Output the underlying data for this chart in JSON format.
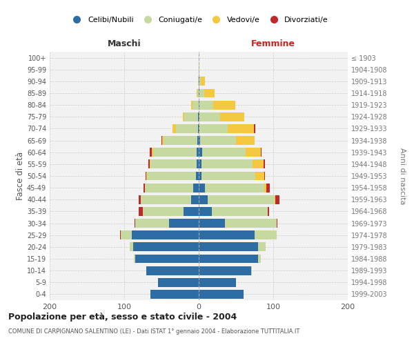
{
  "age_groups": [
    "0-4",
    "5-9",
    "10-14",
    "15-19",
    "20-24",
    "25-29",
    "30-34",
    "35-39",
    "40-44",
    "45-49",
    "50-54",
    "55-59",
    "60-64",
    "65-69",
    "70-74",
    "75-79",
    "80-84",
    "85-89",
    "90-94",
    "95-99",
    "100+"
  ],
  "birth_years": [
    "1999-2003",
    "1994-1998",
    "1989-1993",
    "1984-1988",
    "1979-1983",
    "1974-1978",
    "1969-1973",
    "1964-1968",
    "1959-1963",
    "1954-1958",
    "1949-1953",
    "1944-1948",
    "1939-1943",
    "1934-1938",
    "1929-1933",
    "1924-1928",
    "1919-1923",
    "1914-1918",
    "1909-1913",
    "1904-1908",
    "≤ 1903"
  ],
  "colors": {
    "celibi": "#2E6DA4",
    "coniugati": "#C5D9A0",
    "vedovi": "#F5C842",
    "divorziati": "#C0292A"
  },
  "maschi": {
    "celibi": [
      65,
      55,
      70,
      85,
      88,
      90,
      40,
      20,
      10,
      7,
      4,
      3,
      3,
      2,
      1,
      1,
      0,
      0,
      0,
      0,
      0
    ],
    "coniugati": [
      0,
      0,
      0,
      2,
      5,
      15,
      45,
      55,
      68,
      65,
      65,
      62,
      58,
      45,
      30,
      18,
      8,
      2,
      1,
      0,
      0
    ],
    "vedovi": [
      0,
      0,
      0,
      0,
      0,
      0,
      0,
      0,
      0,
      0,
      1,
      1,
      2,
      2,
      4,
      2,
      2,
      1,
      0,
      0,
      0
    ],
    "divorziati": [
      0,
      0,
      0,
      0,
      0,
      1,
      1,
      6,
      3,
      2,
      1,
      2,
      3,
      1,
      0,
      0,
      0,
      0,
      0,
      0,
      0
    ]
  },
  "femmine": {
    "celibi": [
      60,
      50,
      70,
      80,
      80,
      75,
      35,
      18,
      12,
      8,
      4,
      4,
      5,
      2,
      1,
      1,
      1,
      1,
      1,
      0,
      0
    ],
    "coniugati": [
      0,
      0,
      1,
      3,
      10,
      30,
      70,
      75,
      90,
      80,
      72,
      68,
      58,
      48,
      38,
      28,
      18,
      6,
      2,
      0,
      0
    ],
    "vedovi": [
      0,
      0,
      0,
      0,
      0,
      0,
      0,
      0,
      1,
      3,
      12,
      15,
      20,
      25,
      35,
      32,
      30,
      14,
      5,
      1,
      0
    ],
    "divorziati": [
      0,
      0,
      0,
      0,
      0,
      0,
      1,
      1,
      5,
      4,
      1,
      2,
      1,
      0,
      2,
      0,
      0,
      0,
      0,
      0,
      0
    ]
  },
  "title": "Popolazione per età, sesso e stato civile - 2004",
  "subtitle": "COMUNE DI CARPIGNANO SALENTINO (LE) - Dati ISTAT 1° gennaio 2004 - Elaborazione TUTTITALIA.IT",
  "ylabel": "Fasce di età",
  "ylabel_right": "Anni di nascita",
  "xlabel_left": "Maschi",
  "xlabel_right": "Femmine",
  "xlim": 200,
  "bg_color": "#FFFFFF",
  "grid_color": "#CCCCCC",
  "legend_labels": [
    "Celibi/Nubili",
    "Coniugati/e",
    "Vedovi/e",
    "Divorziati/e"
  ]
}
